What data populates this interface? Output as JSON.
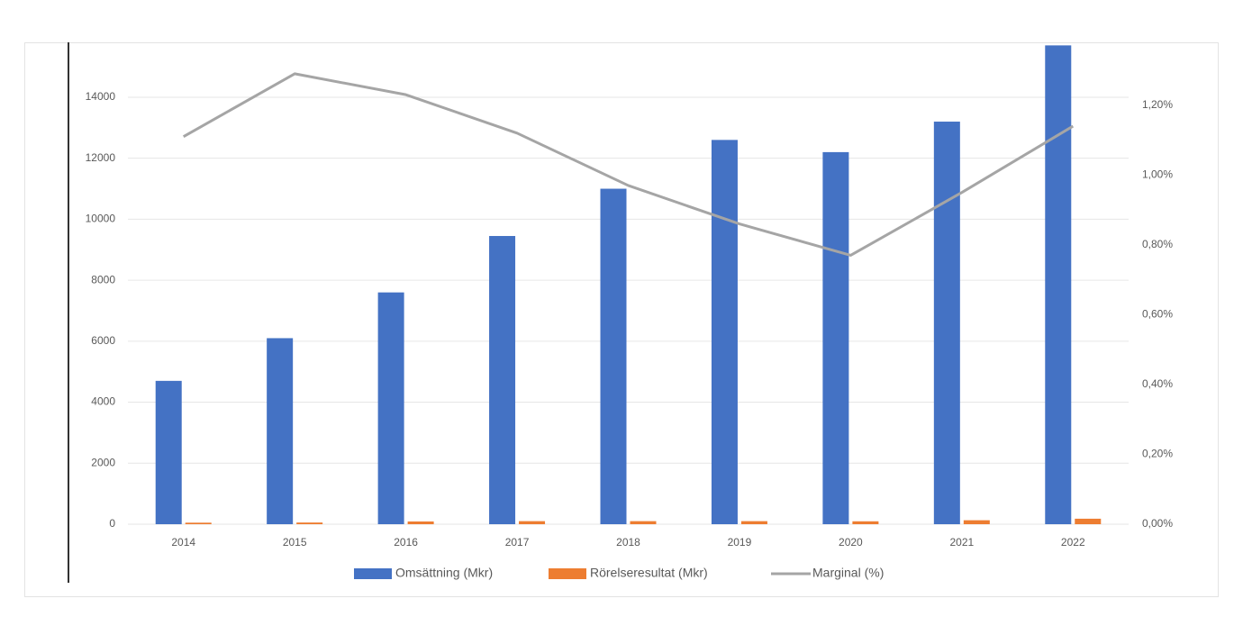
{
  "chart_data": {
    "type": "bar",
    "categories": [
      "2014",
      "2015",
      "2016",
      "2017",
      "2018",
      "2019",
      "2020",
      "2021",
      "2022"
    ],
    "series": [
      {
        "name": "Omsättning (Mkr)",
        "color": "#4472c4",
        "type": "bar",
        "values": [
          4700,
          6100,
          7600,
          9450,
          11000,
          12600,
          12200,
          13200,
          15700
        ]
      },
      {
        "name": "Rörelseresultat (Mkr)",
        "color": "#ed7d31",
        "type": "bar",
        "values": [
          50,
          55,
          90,
          100,
          100,
          100,
          95,
          130,
          180
        ]
      },
      {
        "name": "Marginal (%)",
        "color": "#a5a5a5",
        "type": "line",
        "axis": "y2",
        "values": [
          1.11,
          1.29,
          1.23,
          1.12,
          0.97,
          0.86,
          0.77,
          0.95,
          1.14
        ]
      }
    ],
    "ylim": [
      0,
      15800
    ],
    "yticks": [
      0,
      2000,
      4000,
      6000,
      8000,
      10000,
      12000,
      14000
    ],
    "y2lim": [
      0,
      1.38
    ],
    "y2ticks": [
      {
        "value": 0,
        "label": "0,00%"
      },
      {
        "value": 0.2,
        "label": "0,20%"
      },
      {
        "value": 0.4,
        "label": "0,40%"
      },
      {
        "value": 0.6,
        "label": "0,60%"
      },
      {
        "value": 0.8,
        "label": "0,80%"
      },
      {
        "value": 1.0,
        "label": "1,00%"
      },
      {
        "value": 1.2,
        "label": "1,20%"
      }
    ],
    "grid": true,
    "legend": "bottom"
  }
}
